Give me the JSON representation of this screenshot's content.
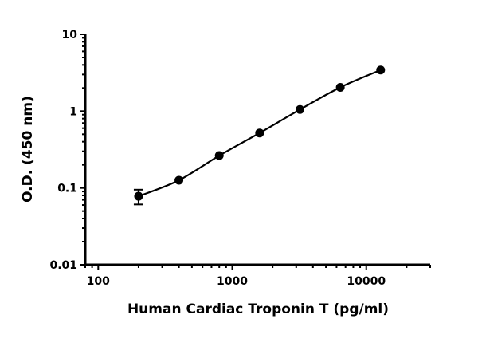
{
  "chart_data": {
    "type": "scatter",
    "title": "",
    "xlabel": "Human Cardiac Troponin T (pg/ml)",
    "ylabel": "O.D. (450 nm)",
    "xscale": "log",
    "yscale": "log",
    "xlim": [
      80,
      30000
    ],
    "ylim": [
      0.01,
      10
    ],
    "xticks": [
      100,
      1000,
      10000
    ],
    "xtick_labels": [
      "100",
      "1000",
      "10000"
    ],
    "yticks": [
      0.01,
      0.1,
      1,
      10
    ],
    "ytick_labels": [
      "0.01",
      "0.1",
      "1",
      "10"
    ],
    "grid": false,
    "legend": "none",
    "fit_curve": true,
    "marker_color": "#000000",
    "series": [
      {
        "x": [
          200,
          400,
          800,
          1600,
          3200,
          6400,
          12800
        ],
        "y": [
          0.078,
          0.126,
          0.264,
          0.52,
          1.05,
          2.04,
          3.43
        ],
        "error": [
          0.017,
          0.004,
          0.008,
          0.01,
          0.02,
          0.03,
          0.04
        ]
      }
    ]
  }
}
